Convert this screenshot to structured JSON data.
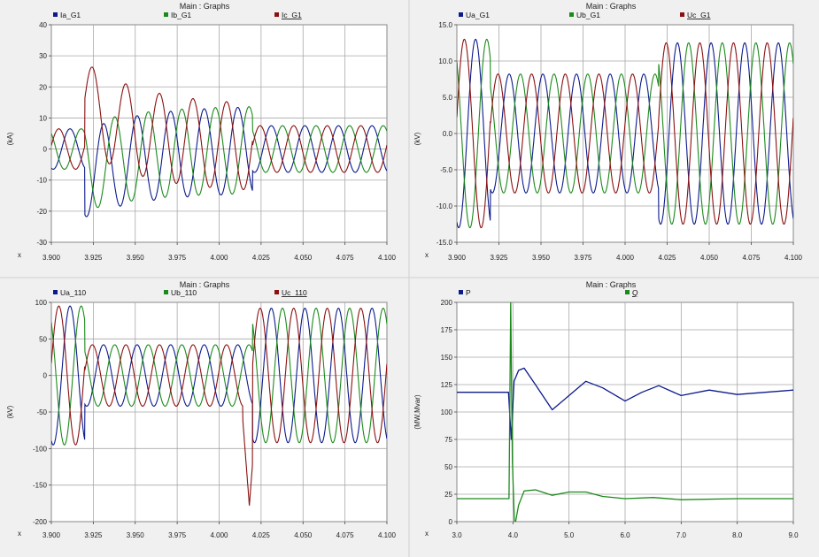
{
  "window_title": "Main : Graphs",
  "colors": {
    "blue": "#0b1a8c",
    "green": "#1b8a1b",
    "red": "#8b1010",
    "grid": "#a8a8a8",
    "plot_bg": "#ffffff",
    "panel_bg": "#f0f0f0"
  },
  "chart_data": [
    {
      "type": "line",
      "title": "Main : Graphs",
      "xlabel": "x",
      "ylabel": "(kA)",
      "xlim": [
        3.9,
        4.1
      ],
      "ylim": [
        -30,
        40
      ],
      "x_ticks": [
        "3.900",
        "3.925",
        "3.950",
        "3.975",
        "4.000",
        "4.025",
        "4.050",
        "4.075",
        "4.100"
      ],
      "y_ticks": [
        "-30",
        "-20",
        "-10",
        "0",
        "10",
        "20",
        "30",
        "40"
      ],
      "grid": true,
      "legend": "top",
      "freq_hz": 50,
      "fault_window": [
        3.92,
        4.02
      ],
      "series": [
        {
          "name": "Ia_G1",
          "color": "blue",
          "phase_deg": 250,
          "amp_pre": 6.5,
          "amp_fault": 14,
          "amp_post": 7.5
        },
        {
          "name": "Ib_G1",
          "color": "green",
          "phase_deg": 130,
          "amp_pre": 6.5,
          "amp_fault": 14,
          "amp_post": 7.5
        },
        {
          "name": "Ic_G1",
          "color": "red",
          "phase_deg": 10,
          "amp_pre": 6.5,
          "amp_fault": 14,
          "amp_post": 7.5,
          "peaks": [
            30.5,
            23.5,
            19.5
          ]
        }
      ]
    },
    {
      "type": "line",
      "title": "Main : Graphs",
      "xlabel": "x",
      "ylabel": "(kV)",
      "xlim": [
        3.9,
        4.1
      ],
      "ylim": [
        -15,
        15
      ],
      "x_ticks": [
        "3.900",
        "3.925",
        "3.950",
        "3.975",
        "4.000",
        "4.025",
        "4.050",
        "4.075",
        "4.100"
      ],
      "y_ticks": [
        "-15.0",
        "-10.0",
        "-5.0",
        "0.0",
        "5.0",
        "10.0",
        "15.0"
      ],
      "grid": true,
      "legend": "top",
      "freq_hz": 50,
      "fault_window": [
        3.92,
        4.02
      ],
      "series": [
        {
          "name": "Ua_G1",
          "color": "blue",
          "phase_deg": 250,
          "amp_pre": 13,
          "amp_fault": 8.2,
          "amp_post": 12.5
        },
        {
          "name": "Ub_G1",
          "color": "green",
          "phase_deg": 130,
          "amp_pre": 13,
          "amp_fault": 8.2,
          "amp_post": 12.5
        },
        {
          "name": "Uc_G1",
          "color": "red",
          "phase_deg": 10,
          "amp_pre": 13,
          "amp_fault": 8.2,
          "amp_post": 12.5
        }
      ]
    },
    {
      "type": "line",
      "title": "Main : Graphs",
      "xlabel": "x",
      "ylabel": "(kV)",
      "xlim": [
        3.9,
        4.1
      ],
      "ylim": [
        -200,
        100
      ],
      "x_ticks": [
        "3.900",
        "3.925",
        "3.950",
        "3.975",
        "4.000",
        "4.025",
        "4.050",
        "4.075",
        "4.100"
      ],
      "y_ticks": [
        "-200",
        "-150",
        "-100",
        "-50",
        "0",
        "50",
        "100"
      ],
      "grid": true,
      "legend": "top",
      "freq_hz": 50,
      "fault_window": [
        3.92,
        4.02
      ],
      "series": [
        {
          "name": "Ua_110",
          "color": "blue",
          "phase_deg": 250,
          "amp_pre": 95,
          "amp_fault": 42,
          "amp_post": 92
        },
        {
          "name": "Ub_110",
          "color": "green",
          "phase_deg": 130,
          "amp_pre": 95,
          "amp_fault": 42,
          "amp_post": 92
        },
        {
          "name": "Uc_110",
          "color": "red",
          "phase_deg": 10,
          "amp_pre": 95,
          "amp_fault": 42,
          "amp_post": 92,
          "spike_min": -178
        }
      ]
    },
    {
      "type": "line",
      "title": "Main : Graphs",
      "xlabel": "x",
      "ylabel": "(MW,Mvar)",
      "xlim": [
        3.0,
        9.0
      ],
      "ylim": [
        0,
        200
      ],
      "x_ticks": [
        "3.0",
        "4.0",
        "5.0",
        "6.0",
        "7.0",
        "8.0",
        "9.0"
      ],
      "y_ticks": [
        "0",
        "25",
        "50",
        "75",
        "100",
        "125",
        "150",
        "175",
        "200"
      ],
      "grid": true,
      "legend": "top",
      "series": [
        {
          "name": "P",
          "color": "blue",
          "x": [
            3.0,
            3.92,
            3.97,
            4.02,
            4.1,
            4.2,
            4.4,
            4.7,
            5.0,
            5.3,
            5.6,
            6.0,
            6.3,
            6.6,
            7.0,
            7.5,
            8.0,
            8.5,
            9.0
          ],
          "y": [
            118,
            118,
            75,
            128,
            138,
            140,
            125,
            102,
            115,
            128,
            122,
            110,
            118,
            124,
            115,
            120,
            116,
            118,
            120
          ]
        },
        {
          "name": "Q",
          "color": "green",
          "x": [
            3.0,
            3.93,
            3.96,
            3.99,
            4.03,
            4.1,
            4.2,
            4.4,
            4.7,
            5.0,
            5.3,
            5.6,
            6.0,
            6.5,
            7.0,
            8.0,
            9.0
          ],
          "y": [
            21,
            21,
            200,
            55,
            -5,
            15,
            28,
            29,
            24,
            27,
            27,
            23,
            21,
            22,
            20,
            21,
            21
          ]
        }
      ]
    }
  ]
}
